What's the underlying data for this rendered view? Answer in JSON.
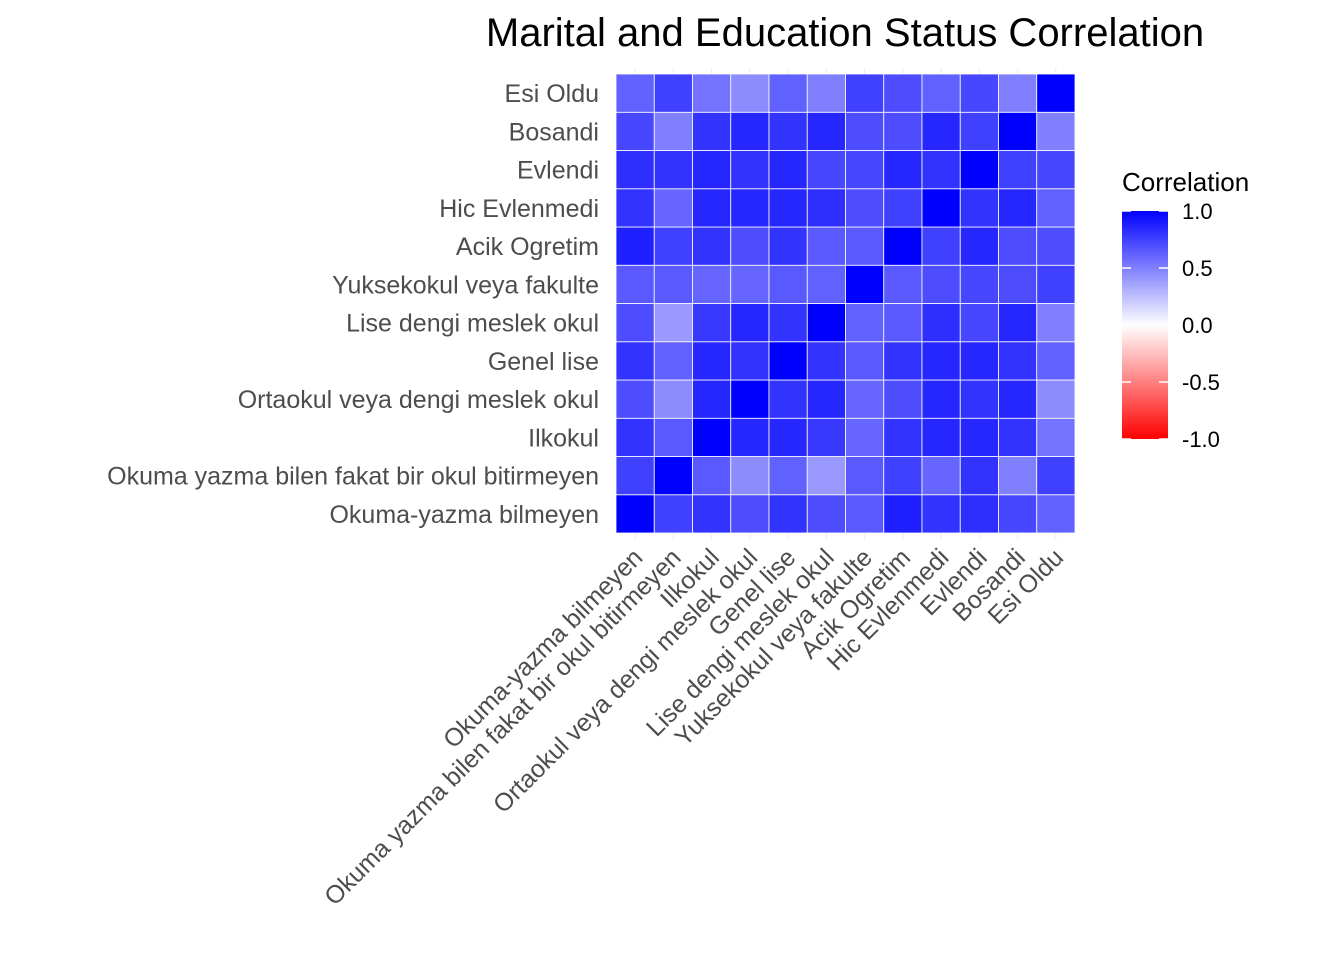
{
  "chart_data": {
    "type": "heatmap",
    "title": "Marital and Education Status Correlation",
    "xlabel": "",
    "ylabel": "",
    "categories": [
      "Okuma-yazma bilmeyen",
      "Okuma yazma bilen fakat bir okul bitirmeyen",
      "Ilkokul",
      "Ortaokul veya dengi meslek okul",
      "Genel lise",
      "Lise dengi meslek okul",
      "Yuksekokul veya fakulte",
      "Acik Ogretim",
      "Hic Evlenmedi",
      "Evlendi",
      "Bosandi",
      "Esi Oldu"
    ],
    "matrix": [
      [
        1.0,
        0.75,
        0.8,
        0.7,
        0.8,
        0.7,
        0.65,
        0.88,
        0.8,
        0.82,
        0.72,
        0.62
      ],
      [
        0.75,
        1.0,
        0.65,
        0.45,
        0.62,
        0.4,
        0.65,
        0.75,
        0.6,
        0.8,
        0.5,
        0.75
      ],
      [
        0.8,
        0.65,
        1.0,
        0.85,
        0.85,
        0.78,
        0.6,
        0.8,
        0.85,
        0.85,
        0.8,
        0.55
      ],
      [
        0.7,
        0.45,
        0.85,
        1.0,
        0.8,
        0.85,
        0.6,
        0.7,
        0.85,
        0.8,
        0.85,
        0.45
      ],
      [
        0.8,
        0.62,
        0.85,
        0.8,
        1.0,
        0.8,
        0.65,
        0.8,
        0.85,
        0.85,
        0.8,
        0.62
      ],
      [
        0.7,
        0.4,
        0.78,
        0.85,
        0.8,
        1.0,
        0.62,
        0.65,
        0.82,
        0.72,
        0.85,
        0.5
      ],
      [
        0.65,
        0.65,
        0.6,
        0.6,
        0.65,
        0.62,
        1.0,
        0.65,
        0.7,
        0.72,
        0.7,
        0.75
      ],
      [
        0.88,
        0.75,
        0.8,
        0.7,
        0.8,
        0.65,
        0.65,
        1.0,
        0.75,
        0.85,
        0.7,
        0.7
      ],
      [
        0.8,
        0.6,
        0.85,
        0.85,
        0.85,
        0.82,
        0.7,
        0.75,
        1.0,
        0.8,
        0.85,
        0.62
      ],
      [
        0.82,
        0.8,
        0.85,
        0.8,
        0.85,
        0.72,
        0.72,
        0.85,
        0.8,
        1.0,
        0.75,
        0.72
      ],
      [
        0.72,
        0.5,
        0.8,
        0.85,
        0.8,
        0.85,
        0.7,
        0.7,
        0.85,
        0.75,
        1.0,
        0.5
      ],
      [
        0.62,
        0.75,
        0.55,
        0.45,
        0.62,
        0.5,
        0.75,
        0.7,
        0.62,
        0.72,
        0.5,
        1.0
      ]
    ],
    "color_scale": {
      "low": "#ff0000",
      "mid": "#ffffff",
      "high": "#0000ff",
      "limits": [
        -1.0,
        1.0
      ]
    },
    "legend": {
      "title": "Correlation",
      "ticks": [
        "1.0",
        "0.5",
        "0.0",
        "-0.5",
        "-1.0"
      ],
      "tick_values": [
        1.0,
        0.5,
        0.0,
        -0.5,
        -1.0
      ],
      "placement": "right"
    },
    "grid": true
  }
}
